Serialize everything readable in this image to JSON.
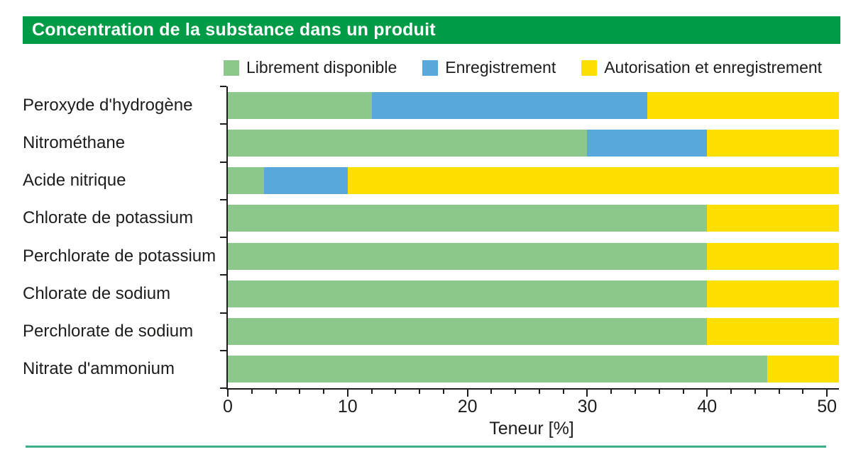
{
  "page": {
    "title": "Concentration de la substance dans un produit",
    "title_bg": "#009b47",
    "title_color": "#ffffff",
    "bottom_rule_color": "#3aad89",
    "axis_color": "#1d1d1b"
  },
  "chart_data": {
    "type": "bar",
    "orientation": "horizontal-stacked",
    "title": "Concentration de la substance dans un produit",
    "xlabel": "Teneur [%]",
    "xlim": [
      0,
      51
    ],
    "xticks": [
      0,
      10,
      20,
      30,
      40,
      50
    ],
    "minor_tick_step": 2,
    "grid": false,
    "legend_position": "top",
    "series_colors": {
      "librement": "#8cc88b",
      "enregistrement": "#58a8db",
      "autorisation": "#ffdf00"
    },
    "legend": [
      {
        "key": "librement",
        "label": "Librement disponible",
        "color": "#8cc88b"
      },
      {
        "key": "enregistrement",
        "label": "Enregistrement",
        "color": "#58a8db"
      },
      {
        "key": "autorisation",
        "label": "Autorisation et enregistrement",
        "color": "#ffdf00"
      }
    ],
    "rows": [
      {
        "label": "Peroxyde d'hydrogène",
        "segments": [
          [
            "librement",
            0,
            12
          ],
          [
            "enregistrement",
            12,
            35
          ],
          [
            "autorisation",
            35,
            51
          ]
        ]
      },
      {
        "label": "Nitrométhane",
        "segments": [
          [
            "librement",
            0,
            30
          ],
          [
            "enregistrement",
            30,
            40
          ],
          [
            "autorisation",
            40,
            51
          ]
        ]
      },
      {
        "label": "Acide nitrique",
        "segments": [
          [
            "librement",
            0,
            3
          ],
          [
            "enregistrement",
            3,
            10
          ],
          [
            "autorisation",
            10,
            51
          ]
        ]
      },
      {
        "label": "Chlorate de potassium",
        "segments": [
          [
            "librement",
            0,
            40
          ],
          [
            "autorisation",
            40,
            51
          ]
        ]
      },
      {
        "label": "Perchlorate de potassium",
        "segments": [
          [
            "librement",
            0,
            40
          ],
          [
            "autorisation",
            40,
            51
          ]
        ]
      },
      {
        "label": "Chlorate de sodium",
        "segments": [
          [
            "librement",
            0,
            40
          ],
          [
            "autorisation",
            40,
            51
          ]
        ]
      },
      {
        "label": "Perchlorate de sodium",
        "segments": [
          [
            "librement",
            0,
            40
          ],
          [
            "autorisation",
            40,
            51
          ]
        ]
      },
      {
        "label": "Nitrate d'ammonium",
        "segments": [
          [
            "librement",
            0,
            45
          ],
          [
            "autorisation",
            45,
            51
          ]
        ]
      }
    ]
  }
}
